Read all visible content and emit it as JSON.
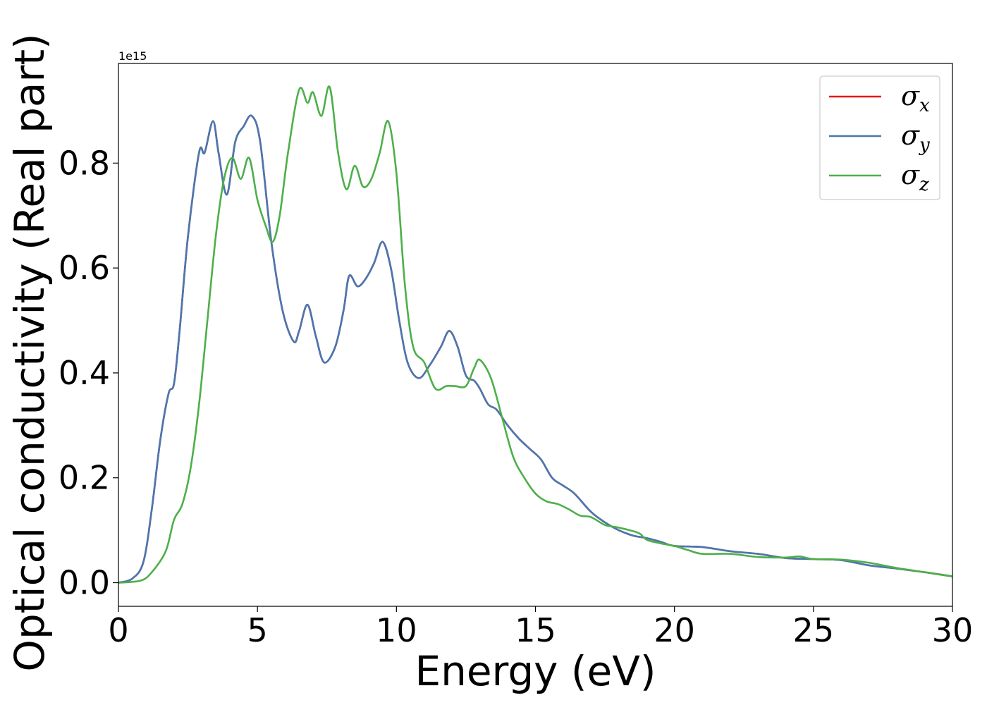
{
  "chart_data": {
    "type": "line",
    "xlabel": "Energy (eV)",
    "ylabel": "Optical conductivity (Real part)",
    "y_offset_text": "1e15",
    "xlim": [
      0,
      30
    ],
    "ylim": [
      -0.045,
      0.99
    ],
    "xticks": [
      0,
      5,
      10,
      15,
      20,
      25,
      30
    ],
    "xtick_labels": [
      "0",
      "5",
      "10",
      "15",
      "20",
      "25",
      "30"
    ],
    "yticks": [
      0.0,
      0.2,
      0.4,
      0.6,
      0.8
    ],
    "ytick_labels": [
      "0.0",
      "0.2",
      "0.4",
      "0.6",
      "0.8"
    ],
    "grid": false,
    "legend_position": "top-right",
    "series": [
      {
        "name": "σx",
        "legend_symbol": "σ",
        "legend_sub": "x",
        "color": "#e41a1c",
        "x": [
          0,
          0.5,
          0.9,
          1.2,
          1.5,
          1.8,
          2.0,
          2.2,
          2.5,
          2.9,
          3.1,
          3.4,
          3.6,
          3.9,
          4.2,
          4.5,
          4.8,
          5.1,
          5.5,
          5.9,
          6.3,
          6.5,
          6.8,
          7.1,
          7.4,
          7.8,
          8.1,
          8.3,
          8.6,
          8.9,
          9.2,
          9.5,
          9.8,
          10.1,
          10.4,
          10.8,
          11.2,
          11.6,
          11.9,
          12.2,
          12.5,
          12.8,
          13.0,
          13.3,
          13.6,
          14.0,
          14.4,
          14.8,
          15.2,
          15.6,
          16.0,
          16.4,
          17.0,
          17.5,
          18.0,
          18.5,
          19.0,
          19.5,
          20.0,
          21.0,
          22.0,
          23.0,
          24.0,
          25.0,
          26.0,
          27.0,
          28.0,
          29.0,
          30.0
        ],
        "y": [
          0.0,
          0.008,
          0.04,
          0.14,
          0.27,
          0.36,
          0.38,
          0.48,
          0.66,
          0.82,
          0.82,
          0.88,
          0.82,
          0.74,
          0.84,
          0.87,
          0.89,
          0.84,
          0.65,
          0.52,
          0.46,
          0.48,
          0.53,
          0.47,
          0.42,
          0.45,
          0.52,
          0.585,
          0.565,
          0.58,
          0.61,
          0.65,
          0.6,
          0.5,
          0.42,
          0.39,
          0.415,
          0.45,
          0.48,
          0.45,
          0.395,
          0.385,
          0.37,
          0.34,
          0.33,
          0.3,
          0.275,
          0.255,
          0.235,
          0.2,
          0.185,
          0.17,
          0.135,
          0.115,
          0.1,
          0.09,
          0.085,
          0.078,
          0.07,
          0.068,
          0.06,
          0.055,
          0.047,
          0.045,
          0.043,
          0.033,
          0.027,
          0.02,
          0.012
        ]
      },
      {
        "name": "σy",
        "legend_symbol": "σ",
        "legend_sub": "y",
        "color": "#4878b0",
        "x": [
          0,
          0.5,
          0.9,
          1.2,
          1.5,
          1.8,
          2.0,
          2.2,
          2.5,
          2.9,
          3.1,
          3.4,
          3.6,
          3.9,
          4.2,
          4.5,
          4.8,
          5.1,
          5.5,
          5.9,
          6.3,
          6.5,
          6.8,
          7.1,
          7.4,
          7.8,
          8.1,
          8.3,
          8.6,
          8.9,
          9.2,
          9.5,
          9.8,
          10.1,
          10.4,
          10.8,
          11.2,
          11.6,
          11.9,
          12.2,
          12.5,
          12.8,
          13.0,
          13.3,
          13.6,
          14.0,
          14.4,
          14.8,
          15.2,
          15.6,
          16.0,
          16.4,
          17.0,
          17.5,
          18.0,
          18.5,
          19.0,
          19.5,
          20.0,
          21.0,
          22.0,
          23.0,
          24.0,
          25.0,
          26.0,
          27.0,
          28.0,
          29.0,
          30.0
        ],
        "y": [
          0.0,
          0.008,
          0.04,
          0.14,
          0.27,
          0.36,
          0.38,
          0.48,
          0.66,
          0.82,
          0.82,
          0.88,
          0.82,
          0.74,
          0.84,
          0.87,
          0.89,
          0.84,
          0.65,
          0.52,
          0.46,
          0.48,
          0.53,
          0.47,
          0.42,
          0.45,
          0.52,
          0.585,
          0.565,
          0.58,
          0.61,
          0.65,
          0.6,
          0.5,
          0.42,
          0.39,
          0.415,
          0.45,
          0.48,
          0.45,
          0.395,
          0.385,
          0.37,
          0.34,
          0.33,
          0.3,
          0.275,
          0.255,
          0.235,
          0.2,
          0.185,
          0.17,
          0.135,
          0.115,
          0.1,
          0.09,
          0.085,
          0.078,
          0.07,
          0.068,
          0.06,
          0.055,
          0.047,
          0.045,
          0.043,
          0.033,
          0.027,
          0.02,
          0.012
        ]
      },
      {
        "name": "σz",
        "legend_symbol": "σ",
        "legend_sub": "z",
        "color": "#4daf4a",
        "x": [
          0,
          0.8,
          1.2,
          1.7,
          2.0,
          2.3,
          2.6,
          2.9,
          3.2,
          3.5,
          3.8,
          4.1,
          4.4,
          4.7,
          5.0,
          5.3,
          5.55,
          5.8,
          6.1,
          6.5,
          6.8,
          7.0,
          7.3,
          7.6,
          7.9,
          8.2,
          8.5,
          8.8,
          9.1,
          9.4,
          9.7,
          10.0,
          10.3,
          10.6,
          11.0,
          11.4,
          11.8,
          12.1,
          12.5,
          12.8,
          13.0,
          13.4,
          13.8,
          14.2,
          14.6,
          15.0,
          15.4,
          15.8,
          16.2,
          16.6,
          17.0,
          17.5,
          18.0,
          18.7,
          19.0,
          19.5,
          20.0,
          20.5,
          21.0,
          22.0,
          23.0,
          24.0,
          24.5,
          25.0,
          26.0,
          27.0,
          28.0,
          29.0,
          30.0
        ],
        "y": [
          0.0,
          0.004,
          0.02,
          0.06,
          0.12,
          0.15,
          0.22,
          0.34,
          0.5,
          0.66,
          0.77,
          0.81,
          0.77,
          0.81,
          0.73,
          0.68,
          0.65,
          0.7,
          0.82,
          0.94,
          0.915,
          0.935,
          0.89,
          0.945,
          0.82,
          0.75,
          0.795,
          0.755,
          0.77,
          0.82,
          0.88,
          0.78,
          0.57,
          0.45,
          0.42,
          0.37,
          0.375,
          0.375,
          0.375,
          0.41,
          0.425,
          0.39,
          0.315,
          0.24,
          0.2,
          0.17,
          0.155,
          0.15,
          0.14,
          0.128,
          0.125,
          0.11,
          0.105,
          0.095,
          0.082,
          0.075,
          0.07,
          0.062,
          0.055,
          0.055,
          0.049,
          0.048,
          0.05,
          0.045,
          0.044,
          0.038,
          0.028,
          0.02,
          0.012
        ]
      }
    ]
  }
}
